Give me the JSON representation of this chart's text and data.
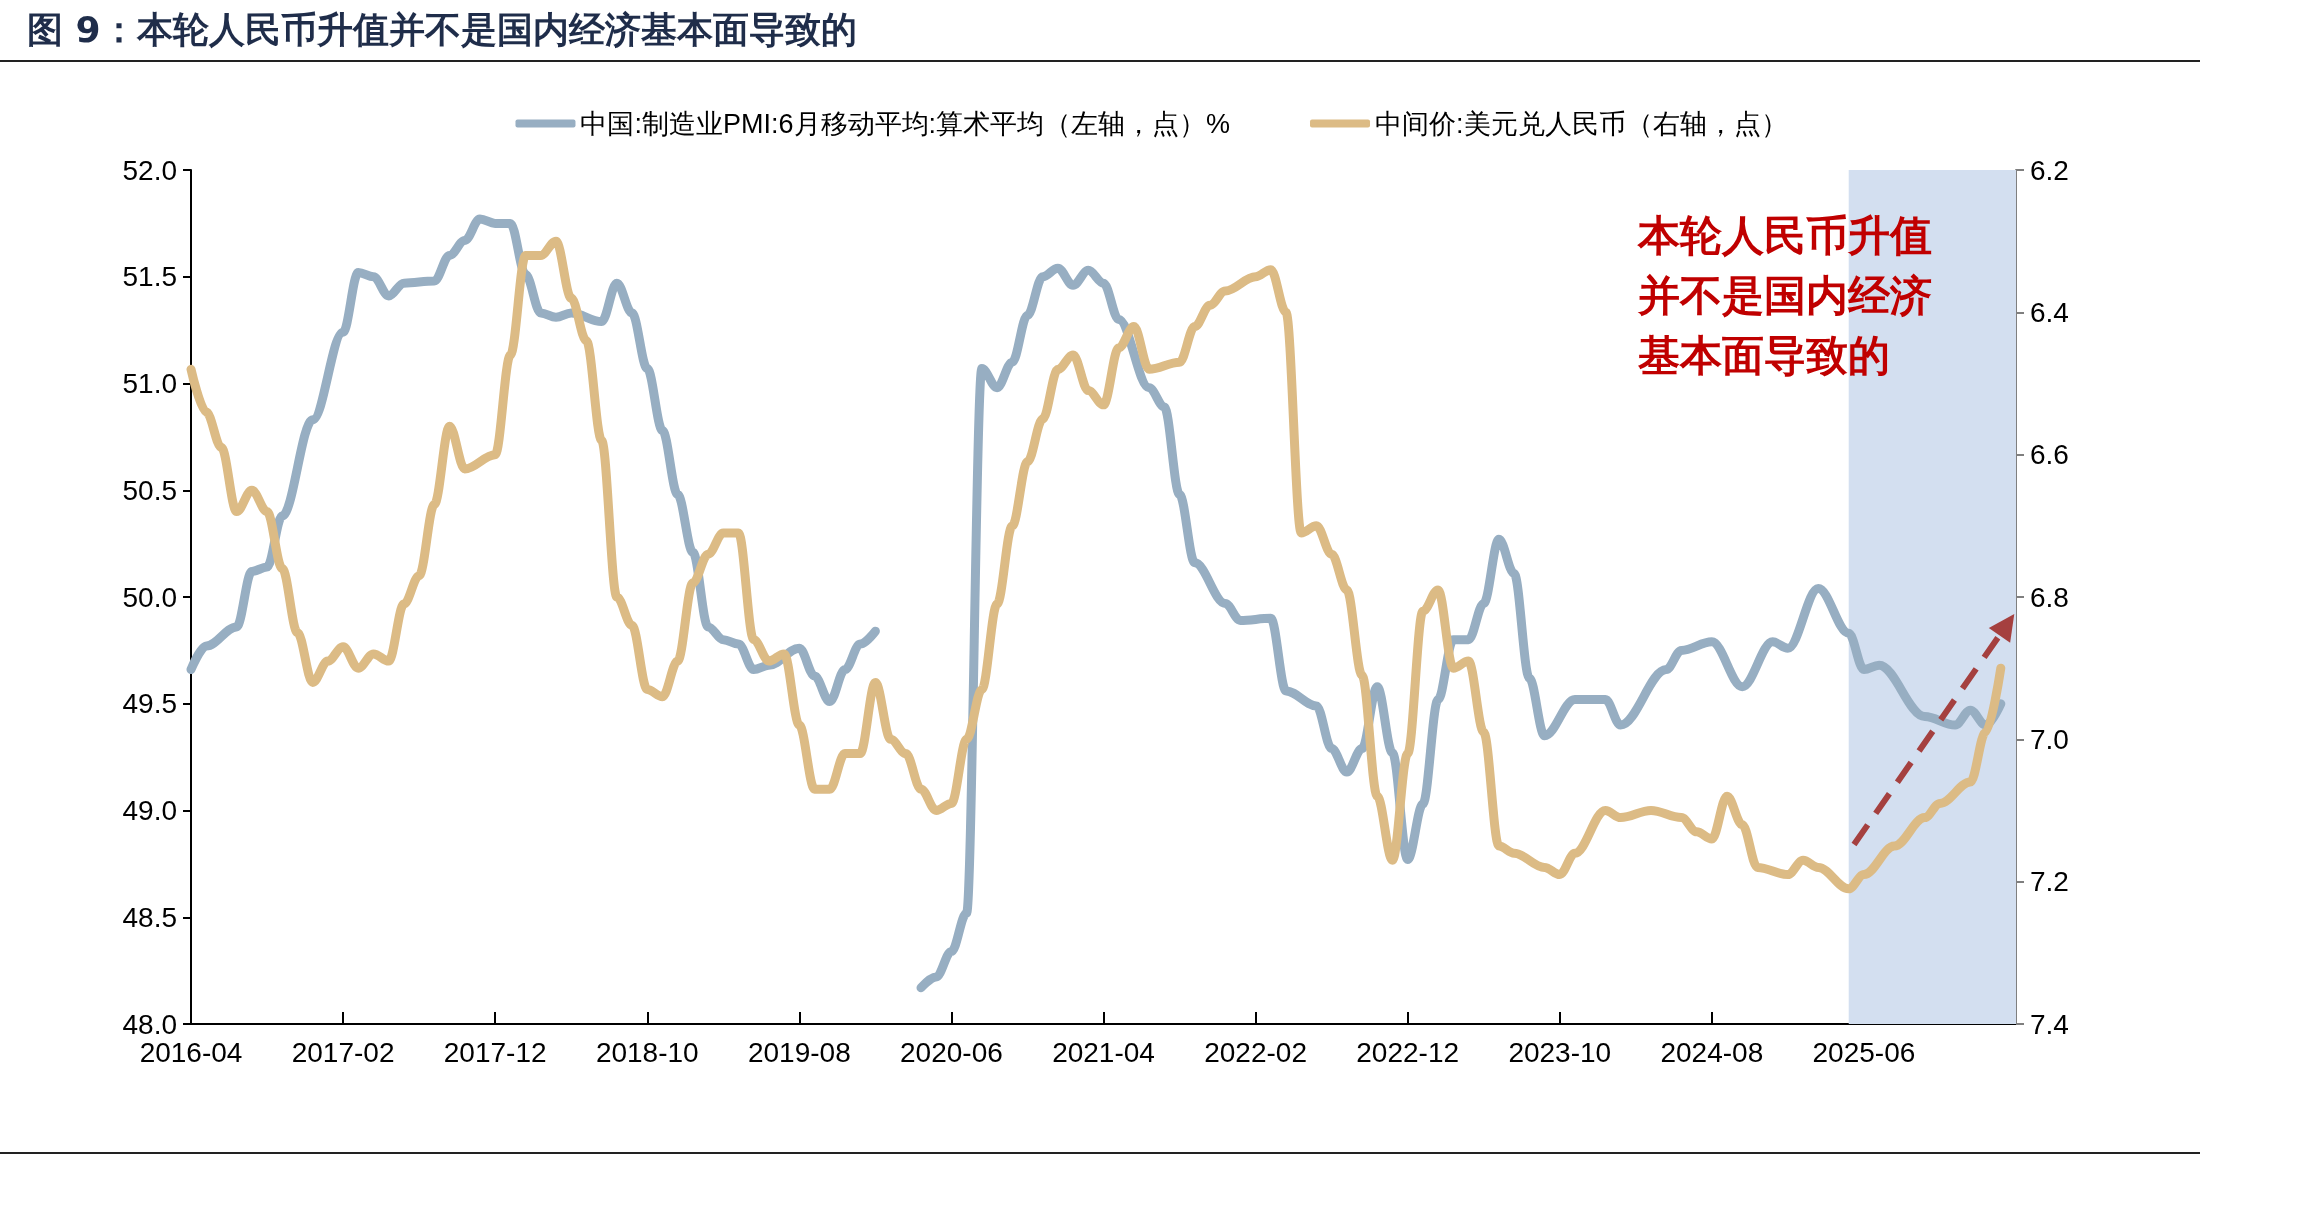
{
  "chart_data": {
    "type": "line",
    "title": "图 9：本轮人民币升值并不是国内经济基本面导致的",
    "annotations": [
      "本轮人民币升值并不是国内经济基本面导致的"
    ],
    "xlim": [
      "2016-04",
      "2026-04"
    ],
    "xticks": [
      "2016-04",
      "2017-02",
      "2017-12",
      "2018-10",
      "2019-08",
      "2020-06",
      "2021-04",
      "2022-02",
      "2022-12",
      "2023-10",
      "2024-08",
      "2025-06"
    ],
    "ylim": [
      48,
      52
    ],
    "yticks": [
      {
        "value": 48,
        "label": "48.0"
      },
      {
        "value": 48.5,
        "label": "48.5"
      },
      {
        "value": 49,
        "label": "49.0"
      },
      {
        "value": 49.5,
        "label": "49.5"
      },
      {
        "value": 50,
        "label": "50.0"
      },
      {
        "value": 50.5,
        "label": "50.5"
      },
      {
        "value": 51,
        "label": "51.0"
      },
      {
        "value": 51.5,
        "label": "51.5"
      },
      {
        "value": 52,
        "label": "52.0"
      }
    ],
    "y2lim": [
      7.4,
      6.2
    ],
    "y2ticks": [
      6.2,
      6.4,
      6.6,
      6.8,
      {
        "value": 7,
        "label": "7.0"
      },
      7.2,
      7.4
    ],
    "grid": false,
    "legend": "top",
    "marker": "none",
    "line_style": "solid",
    "bands": [
      {
        "axis": "x",
        "from": "2025-05",
        "to": "2026-04",
        "color": "#d3dff0"
      }
    ],
    "series": [
      {
        "name": "中国:制造业PMI:6月移动平均:算术平均（左轴，点）%",
        "color": "#97aec2",
        "x": [
          "2016-04",
          "2016-05",
          "2016-07",
          "2016-08",
          "2016-09",
          "2016-10",
          "2016-12",
          "2017-02",
          "2017-03",
          "2017-04",
          "2017-05",
          "2017-06",
          "2017-08",
          "2017-09",
          "2017-10",
          "2017-11",
          "2017-12",
          "2018-01",
          "2018-02",
          "2018-03",
          "2018-04",
          "2018-05",
          "2018-07",
          "2018-08",
          "2018-09",
          "2018-10",
          "2018-11",
          "2018-12",
          "2019-01",
          "2019-02",
          "2019-03",
          "2019-04",
          "2019-05",
          "2019-06",
          "2019-08",
          "2019-09",
          "2019-10",
          "2019-11",
          "2019-12",
          "2020-01",
          "2020-02",
          "2020-03",
          "2020-04",
          "2020-05",
          "2020-06",
          "2020-07",
          "2020-08",
          "2020-09",
          "2020-10",
          "2020-11",
          "2020-12",
          "2021-01",
          "2021-02",
          "2021-03",
          "2021-04",
          "2021-05",
          "2021-07",
          "2021-08",
          "2021-09",
          "2021-10",
          "2021-12",
          "2022-01",
          "2022-03",
          "2022-04",
          "2022-06",
          "2022-07",
          "2022-08",
          "2022-09",
          "2022-10",
          "2022-11",
          "2022-12",
          "2023-01",
          "2023-02",
          "2023-03",
          "2023-04",
          "2023-05",
          "2023-06",
          "2023-07",
          "2023-08",
          "2023-09",
          "2023-11",
          "2024-01",
          "2024-02",
          "2024-05",
          "2024-06",
          "2024-08",
          "2024-10",
          "2024-12",
          "2025-01",
          "2025-03",
          "2025-05",
          "2025-06",
          "2025-07",
          "2025-10",
          "2025-12",
          "2026-01",
          "2026-02",
          "2026-03"
        ],
        "values": [
          49.66,
          49.77,
          49.86,
          50.12,
          50.14,
          50.38,
          50.83,
          51.24,
          51.52,
          51.5,
          51.41,
          51.47,
          51.48,
          51.6,
          51.67,
          51.77,
          51.75,
          51.75,
          51.51,
          51.33,
          51.31,
          51.33,
          51.29,
          51.47,
          51.33,
          51.07,
          50.78,
          50.48,
          50.21,
          49.86,
          49.8,
          49.78,
          49.66,
          49.68,
          49.76,
          49.63,
          49.51,
          49.66,
          49.78,
          49.84,
          null,
          null,
          48.17,
          48.22,
          48.34,
          48.52,
          51.07,
          50.98,
          51.1,
          51.32,
          51.5,
          51.54,
          51.46,
          51.53,
          51.47,
          51.3,
          50.98,
          50.89,
          50.48,
          50.16,
          49.97,
          49.89,
          49.9,
          49.56,
          49.49,
          49.29,
          49.18,
          49.29,
          49.58,
          49.27,
          48.77,
          49.03,
          49.52,
          49.8,
          49.8,
          49.97,
          50.27,
          50.11,
          49.62,
          49.35,
          49.52,
          49.52,
          49.4,
          49.66,
          49.75,
          49.79,
          49.58,
          49.79,
          49.76,
          50.04,
          49.83,
          49.66,
          49.68,
          49.44,
          49.4,
          49.47,
          49.4,
          49.5
        ]
      },
      {
        "name": "中间价:美元兑人民币（右轴，点）",
        "color": "#dcbb85",
        "axis": "y2",
        "x": [
          "2016-04",
          "2016-05",
          "2016-06",
          "2016-07",
          "2016-08",
          "2016-09",
          "2016-10",
          "2016-11",
          "2016-12",
          "2017-01",
          "2017-02",
          "2017-03",
          "2017-04",
          "2017-05",
          "2017-06",
          "2017-07",
          "2017-08",
          "2017-09",
          "2017-10",
          "2017-12",
          "2018-01",
          "2018-02",
          "2018-03",
          "2018-04",
          "2018-05",
          "2018-06",
          "2018-07",
          "2018-08",
          "2018-09",
          "2018-10",
          "2018-11",
          "2018-12",
          "2019-01",
          "2019-02",
          "2019-03",
          "2019-04",
          "2019-05",
          "2019-06",
          "2019-07",
          "2019-08",
          "2019-09",
          "2019-10",
          "2019-11",
          "2019-12",
          "2020-01",
          "2020-02",
          "2020-03",
          "2020-04",
          "2020-05",
          "2020-06",
          "2020-07",
          "2020-08",
          "2020-09",
          "2020-10",
          "2020-11",
          "2020-12",
          "2021-01",
          "2021-02",
          "2021-03",
          "2021-04",
          "2021-05",
          "2021-06",
          "2021-07",
          "2021-09",
          "2021-10",
          "2021-11",
          "2021-12",
          "2022-02",
          "2022-03",
          "2022-04",
          "2022-05",
          "2022-06",
          "2022-07",
          "2022-08",
          "2022-09",
          "2022-10",
          "2022-11",
          "2022-12",
          "2023-01",
          "2023-02",
          "2023-03",
          "2023-04",
          "2023-05",
          "2023-06",
          "2023-07",
          "2023-09",
          "2023-10",
          "2023-11",
          "2024-01",
          "2024-02",
          "2024-04",
          "2024-06",
          "2024-07",
          "2024-08",
          "2024-09",
          "2024-10",
          "2024-11",
          "2025-01",
          "2025-02",
          "2025-03",
          "2025-05",
          "2025-06",
          "2025-08",
          "2025-10",
          "2025-11",
          "2026-01",
          "2026-02",
          "2026-03"
        ],
        "values": [
          6.48,
          6.54,
          6.59,
          6.68,
          6.65,
          6.68,
          6.76,
          6.85,
          6.92,
          6.89,
          6.87,
          6.9,
          6.88,
          6.89,
          6.81,
          6.77,
          6.67,
          6.56,
          6.62,
          6.6,
          6.46,
          6.32,
          6.32,
          6.3,
          6.38,
          6.44,
          6.58,
          6.8,
          6.84,
          6.93,
          6.94,
          6.89,
          6.78,
          6.74,
          6.71,
          6.71,
          6.86,
          6.89,
          6.88,
          6.98,
          7.07,
          7.07,
          7.02,
          7.02,
          6.92,
          7.0,
          7.02,
          7.07,
          7.1,
          7.09,
          7.0,
          6.93,
          6.81,
          6.7,
          6.61,
          6.55,
          6.48,
          6.46,
          6.51,
          6.53,
          6.45,
          6.42,
          6.48,
          6.47,
          6.42,
          6.39,
          6.37,
          6.35,
          6.34,
          6.4,
          6.71,
          6.7,
          6.74,
          6.79,
          6.91,
          7.08,
          7.17,
          7.02,
          6.82,
          6.79,
          6.9,
          6.89,
          6.99,
          7.15,
          7.16,
          7.18,
          7.19,
          7.16,
          7.1,
          7.11,
          7.1,
          7.11,
          7.13,
          7.14,
          7.08,
          7.12,
          7.18,
          7.19,
          7.17,
          7.18,
          7.21,
          7.19,
          7.15,
          7.11,
          7.09,
          7.06,
          6.99,
          6.9
        ]
      }
    ]
  }
}
